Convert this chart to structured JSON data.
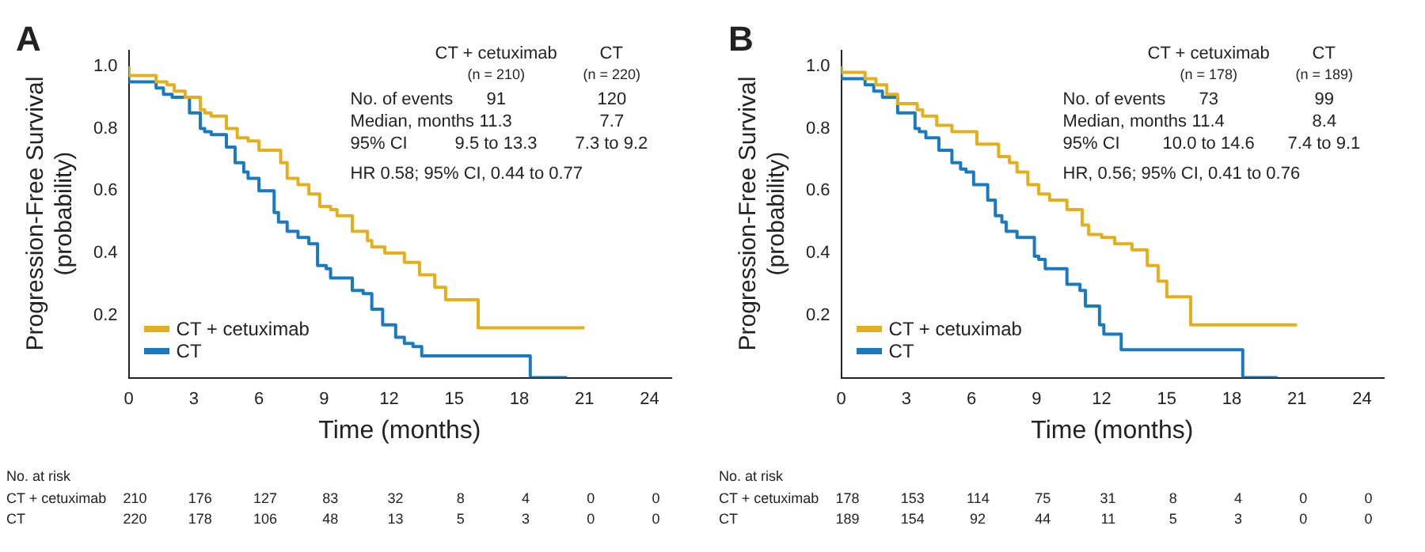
{
  "chart_data": [
    {
      "type": "step",
      "title": "A",
      "xlabel": "Time (months)",
      "ylabel": "Progression-Free Survival (probability)",
      "legend": "bottom left",
      "grid": false,
      "marker": "none",
      "xlim": [
        0,
        25
      ],
      "ylim": [
        0,
        1.05
      ],
      "xticks": [
        0,
        3,
        6,
        9,
        12,
        15,
        18,
        21,
        24
      ],
      "yticks": [
        0.2,
        0.4,
        0.6,
        0.8,
        {
          "value": 1,
          "label": "1.0"
        }
      ],
      "series": [
        {
          "name": "CT + cetuximab",
          "color": "#e3b01c",
          "x": [
            0,
            1.26,
            1.76,
            2.1,
            2.6,
            3.3,
            3.5,
            3.8,
            4.5,
            5.0,
            5.5,
            6.0,
            7.0,
            7.3,
            7.8,
            8.3,
            8.8,
            9.3,
            9.6,
            10.3,
            11.0,
            11.2,
            11.8,
            12.7,
            13.4,
            14.1,
            14.6,
            15.1,
            16.1,
            18.3,
            21.0
          ],
          "values": [
            1.0,
            0.97,
            0.95,
            0.94,
            0.92,
            0.9,
            0.86,
            0.85,
            0.84,
            0.8,
            0.77,
            0.76,
            0.73,
            0.69,
            0.64,
            0.62,
            0.59,
            0.55,
            0.54,
            0.52,
            0.47,
            0.44,
            0.42,
            0.4,
            0.37,
            0.33,
            0.29,
            0.25,
            0.25,
            0.16,
            0.16
          ]
        },
        {
          "name": "CT",
          "color": "#1a7abf",
          "x": [
            0,
            1.26,
            1.6,
            2.0,
            2.8,
            3.3,
            3.5,
            3.8,
            4.5,
            4.9,
            5.3,
            5.5,
            6.0,
            6.7,
            6.9,
            7.3,
            7.8,
            8.3,
            8.7,
            9.1,
            9.3,
            10.3,
            10.8,
            11.2,
            11.7,
            12.3,
            12.7,
            13.1,
            13.5,
            18.5,
            20.2
          ],
          "values": [
            1.0,
            0.95,
            0.93,
            0.91,
            0.9,
            0.85,
            0.8,
            0.79,
            0.78,
            0.74,
            0.69,
            0.66,
            0.64,
            0.6,
            0.53,
            0.5,
            0.47,
            0.45,
            0.43,
            0.36,
            0.35,
            0.32,
            0.28,
            0.27,
            0.22,
            0.17,
            0.13,
            0.11,
            0.1,
            0.07,
            0
          ]
        }
      ],
      "annotations": [
        "CT + cetuximab",
        "CT",
        "(n = 210)",
        "(n = 220)",
        "No. of events",
        "91",
        "120",
        "Median, months",
        "11.3",
        "7.7",
        "95% CI",
        "9.5 to 13.3",
        "7.3 to 9.2",
        "HR 0.58; 95% CI, 0.44 to 0.77",
        "No. at risk",
        "CT + cetuximab",
        "210",
        "176",
        "127",
        "83",
        "32",
        "8",
        "4",
        "0",
        "0",
        "CT",
        "220",
        "178",
        "106",
        "48",
        "13",
        "5",
        "3",
        "0",
        "0"
      ]
    },
    {
      "type": "step",
      "title": "B",
      "xlabel": "Time (months)",
      "ylabel": "Progression-Free Survival (probability)",
      "legend": "bottom left",
      "grid": false,
      "marker": "none",
      "xlim": [
        0,
        25
      ],
      "ylim": [
        0,
        1.05
      ],
      "xticks": [
        0,
        3,
        6,
        9,
        12,
        15,
        18,
        21,
        24
      ],
      "yticks": [
        0.2,
        0.4,
        0.6,
        0.8,
        {
          "value": 1,
          "label": "1.0"
        }
      ],
      "series": [
        {
          "name": "CT + cetuximab",
          "color": "#e3b01c",
          "x": [
            0,
            1.1,
            1.6,
            2.1,
            2.6,
            3.5,
            3.75,
            4.4,
            5.1,
            5.6,
            6.25,
            7.25,
            7.75,
            8.1,
            8.6,
            9.1,
            9.6,
            10.4,
            11.1,
            11.4,
            12.0,
            12.6,
            13.4,
            14.1,
            14.6,
            15.0,
            16.1,
            18.25,
            21.0
          ],
          "values": [
            1.0,
            0.98,
            0.96,
            0.94,
            0.91,
            0.88,
            0.86,
            0.84,
            0.81,
            0.79,
            0.79,
            0.75,
            0.71,
            0.69,
            0.66,
            0.62,
            0.59,
            0.57,
            0.54,
            0.49,
            0.46,
            0.45,
            0.43,
            0.41,
            0.36,
            0.31,
            0.26,
            0.17,
            0.17
          ]
        },
        {
          "name": "CT",
          "color": "#1a7abf",
          "x": [
            0,
            1.1,
            1.5,
            1.9,
            2.6,
            3.4,
            3.6,
            3.9,
            4.5,
            5.1,
            5.5,
            5.75,
            6.1,
            6.75,
            7.1,
            7.4,
            7.6,
            8.1,
            8.9,
            9.1,
            9.4,
            10.4,
            11.0,
            11.25,
            11.9,
            12.1,
            12.5,
            12.9,
            18.5,
            20.1
          ],
          "values": [
            1.0,
            0.96,
            0.94,
            0.92,
            0.9,
            0.85,
            0.8,
            0.79,
            0.77,
            0.73,
            0.69,
            0.67,
            0.66,
            0.62,
            0.57,
            0.52,
            0.5,
            0.47,
            0.45,
            0.39,
            0.38,
            0.35,
            0.3,
            0.28,
            0.23,
            0.17,
            0.14,
            0.14,
            0.09,
            0
          ]
        }
      ],
      "annotations": [
        "CT + cetuximab",
        "CT",
        "(n = 178)",
        "(n = 189)",
        "No. of events",
        "73",
        "99",
        "Median, months",
        "11.4",
        "8.4",
        "95% CI",
        "10.0 to 14.6",
        "7.4 to 9.1",
        "HR, 0.56; 95% CI, 0.41 to 0.76",
        "No. at risk",
        "CT + cetuximab",
        "178",
        "153",
        "114",
        "75",
        "31",
        "8",
        "4",
        "0",
        "0",
        "CT",
        "189",
        "154",
        "92",
        "44",
        "11",
        "5",
        "3",
        "0",
        "0"
      ]
    }
  ]
}
